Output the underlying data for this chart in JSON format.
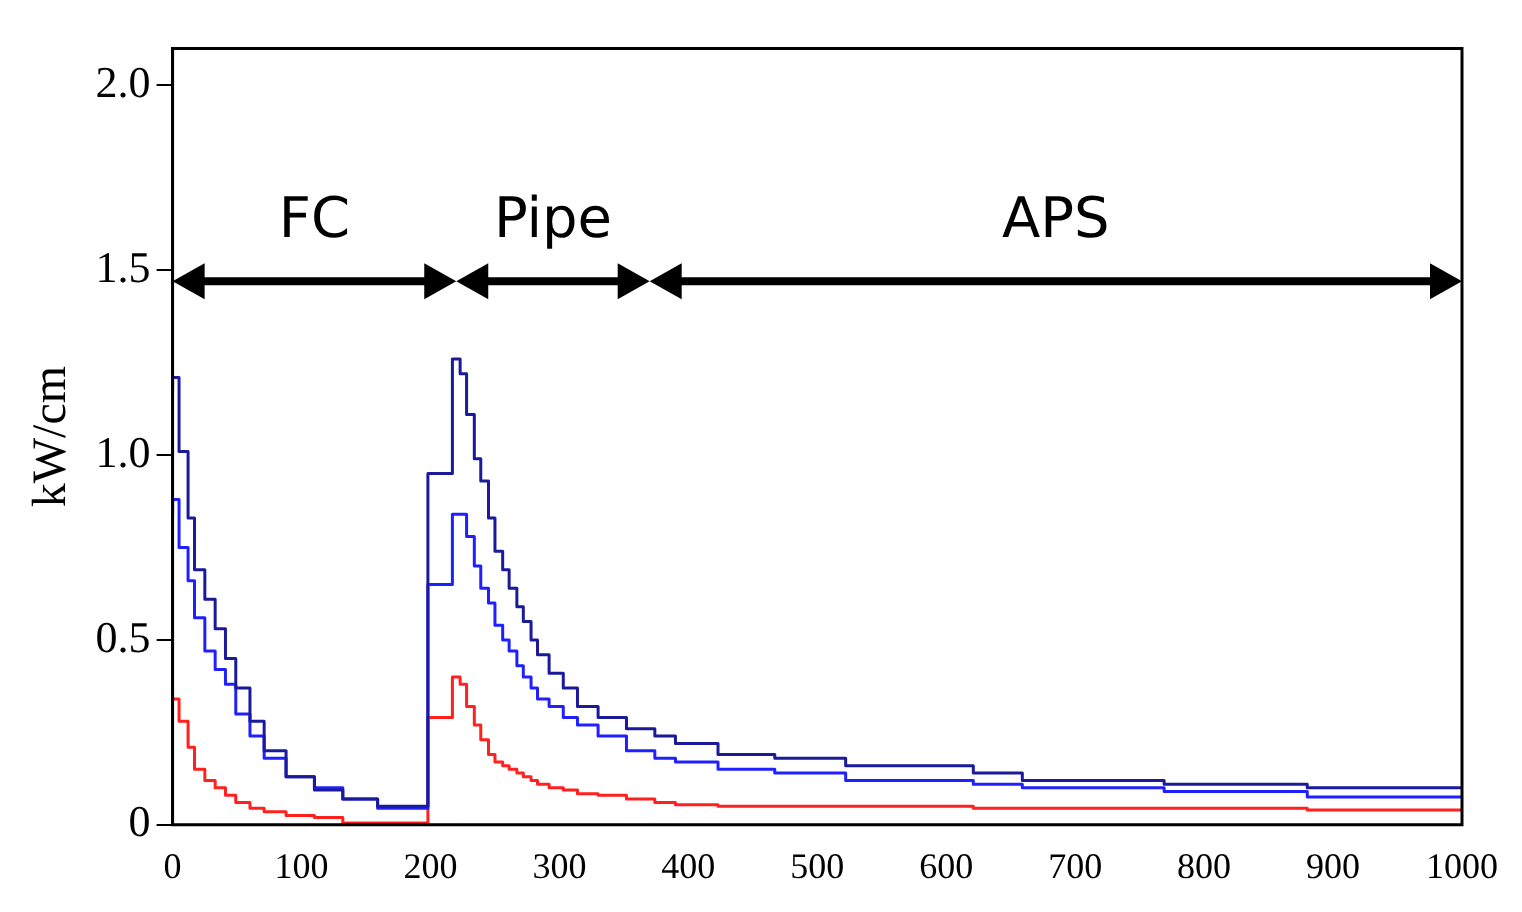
{
  "chart_data": {
    "type": "step",
    "ylabel": "kW/cm",
    "x": [
      0,
      5,
      12,
      17,
      25,
      33,
      41,
      49,
      60,
      71,
      88,
      110,
      132,
      159,
      198,
      217,
      223,
      228,
      234,
      239,
      245,
      250,
      256,
      261,
      267,
      272,
      278,
      283,
      292,
      303,
      314,
      330,
      352,
      374,
      390,
      423,
      467,
      522,
      577,
      621,
      659,
      769,
      880,
      934,
      1000
    ],
    "series": [
      {
        "color": "#1a1a9a",
        "values": [
          1.18,
          1.21,
          1.01,
          0.83,
          0.69,
          0.61,
          0.53,
          0.45,
          0.37,
          0.28,
          0.2,
          0.13,
          0.094,
          0.07,
          0.05,
          0.95,
          1.26,
          1.22,
          1.11,
          0.99,
          0.93,
          0.83,
          0.74,
          0.69,
          0.64,
          0.59,
          0.55,
          0.5,
          0.46,
          0.41,
          0.37,
          0.32,
          0.29,
          0.26,
          0.24,
          0.22,
          0.19,
          0.18,
          0.16,
          0.16,
          0.14,
          0.12,
          0.11,
          0.1,
          0.1
        ]
      },
      {
        "color": "#2020ff",
        "values": [
          0.84,
          0.88,
          0.75,
          0.66,
          0.56,
          0.47,
          0.42,
          0.38,
          0.3,
          0.24,
          0.18,
          0.13,
          0.1,
          0.07,
          0.045,
          0.65,
          0.84,
          0.84,
          0.78,
          0.7,
          0.64,
          0.6,
          0.54,
          0.5,
          0.47,
          0.43,
          0.4,
          0.37,
          0.34,
          0.32,
          0.29,
          0.27,
          0.24,
          0.2,
          0.18,
          0.17,
          0.15,
          0.14,
          0.12,
          0.12,
          0.11,
          0.1,
          0.09,
          0.075,
          0.075
        ]
      },
      {
        "color": "#ff2020",
        "values": [
          0.34,
          0.34,
          0.28,
          0.21,
          0.15,
          0.12,
          0.1,
          0.08,
          0.06,
          0.045,
          0.035,
          0.025,
          0.02,
          0.005,
          0.005,
          0.29,
          0.4,
          0.38,
          0.32,
          0.27,
          0.23,
          0.19,
          0.17,
          0.16,
          0.15,
          0.14,
          0.13,
          0.12,
          0.11,
          0.1,
          0.094,
          0.084,
          0.08,
          0.07,
          0.06,
          0.054,
          0.05,
          0.05,
          0.05,
          0.05,
          0.045,
          0.045,
          0.045,
          0.04,
          0.04
        ]
      }
    ],
    "xlim": [
      0,
      1000
    ],
    "xticks": [
      0,
      100,
      200,
      300,
      400,
      500,
      600,
      700,
      800,
      900,
      1000
    ],
    "ylim": [
      0,
      2.1
    ],
    "yticks": [
      0,
      {
        "value": 0.5,
        "label": "0.5"
      },
      {
        "value": 1,
        "label": "1.0"
      },
      {
        "value": 1.5,
        "label": "1.5"
      },
      {
        "value": 2,
        "label": "2.0"
      }
    ],
    "bands": [
      {
        "axis": "x",
        "from": 0,
        "to": 220,
        "label": "FC",
        "color": "#ffffff"
      },
      {
        "axis": "x",
        "from": 220,
        "to": 370,
        "label": "Pipe",
        "color": "#ffffff"
      },
      {
        "axis": "x",
        "from": 370,
        "to": 1000,
        "label": "APS",
        "color": "#ffffff"
      }
    ],
    "grid": false,
    "legend": false,
    "marker": "none",
    "line_style": "solid"
  }
}
